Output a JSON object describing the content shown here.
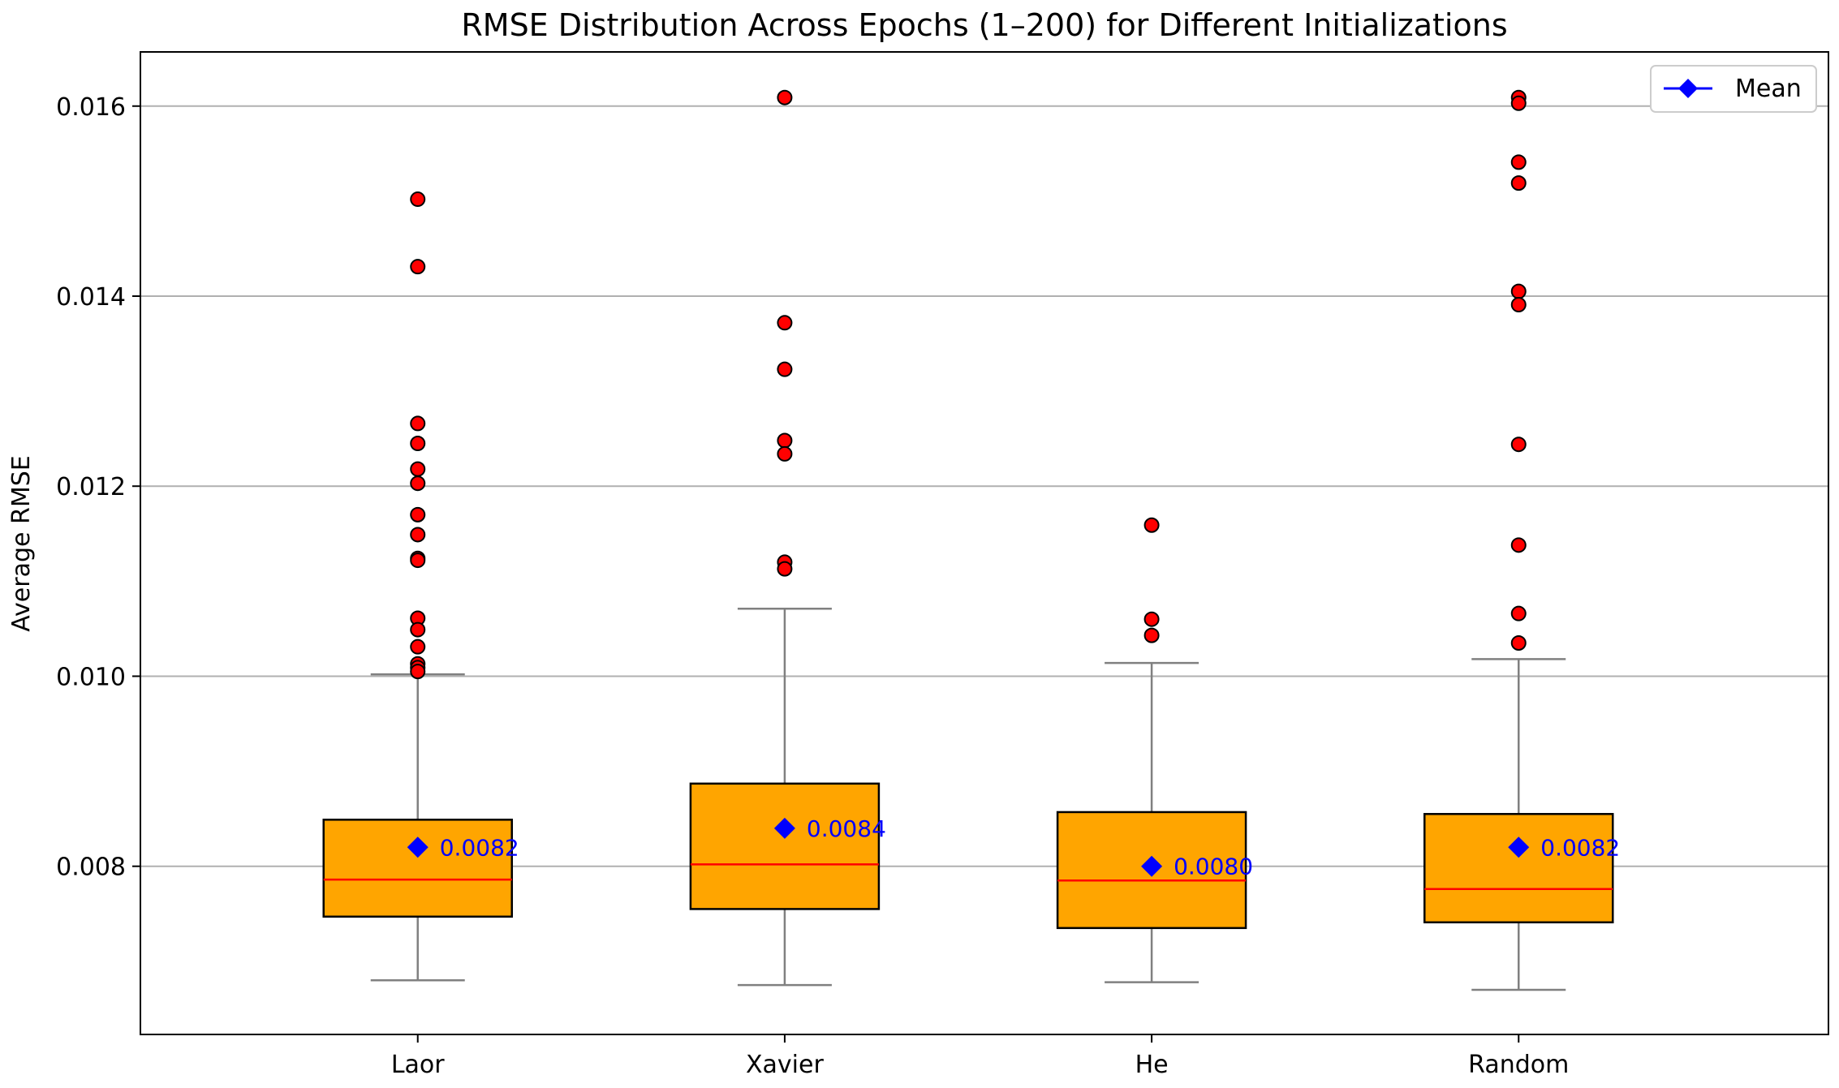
{
  "chart_data": {
    "type": "box",
    "title": "RMSE Distribution Across Epochs (1–200) for Different Initializations",
    "xlabel": "",
    "ylabel": "Average RMSE",
    "categories": [
      "Laor",
      "Xavier",
      "He",
      "Random"
    ],
    "ylim": [
      0.00623,
      0.01657
    ],
    "y_ticks": [
      0.008,
      0.01,
      0.012,
      0.014,
      0.016
    ],
    "y_tick_labels": [
      "0.008",
      "0.010",
      "0.012",
      "0.014",
      "0.016"
    ],
    "grid": "horizontal",
    "legend": {
      "position": "top-right",
      "entries": [
        "Mean"
      ]
    },
    "colors": {
      "box": "#ffa500",
      "median": "#ff0000",
      "whisker": "#808080",
      "outlier": "#ff0000",
      "mean": "#0000ff"
    },
    "boxes": [
      {
        "name": "Laor",
        "whislo": 0.0068,
        "q1": 0.00747,
        "median": 0.00786,
        "q3": 0.00849,
        "whishi": 0.01002,
        "mean": 0.0082,
        "mean_label": "0.0082",
        "fliers": [
          0.01502,
          0.01431,
          0.01266,
          0.01245,
          0.01218,
          0.01203,
          0.0117,
          0.01149,
          0.01124,
          0.01122,
          0.01061,
          0.01049,
          0.01031,
          0.01013,
          0.01009,
          0.01005
        ]
      },
      {
        "name": "Xavier",
        "whislo": 0.00675,
        "q1": 0.00755,
        "median": 0.00802,
        "q3": 0.00887,
        "whishi": 0.01071,
        "mean": 0.0084,
        "mean_label": "0.0084",
        "fliers": [
          0.01609,
          0.01372,
          0.01323,
          0.01248,
          0.01234,
          0.0112,
          0.01113
        ]
      },
      {
        "name": "He",
        "whislo": 0.00678,
        "q1": 0.00735,
        "median": 0.00785,
        "q3": 0.00857,
        "whishi": 0.01014,
        "mean": 0.008,
        "mean_label": "0.0080",
        "fliers": [
          0.01159,
          0.0106,
          0.01043
        ]
      },
      {
        "name": "Random",
        "whislo": 0.0067,
        "q1": 0.00741,
        "median": 0.00776,
        "q3": 0.00855,
        "whishi": 0.01018,
        "mean": 0.0082,
        "mean_label": "0.0082",
        "fliers": [
          0.01609,
          0.01603,
          0.01541,
          0.01519,
          0.01405,
          0.01391,
          0.01244,
          0.01138,
          0.01066,
          0.01035
        ]
      }
    ]
  }
}
